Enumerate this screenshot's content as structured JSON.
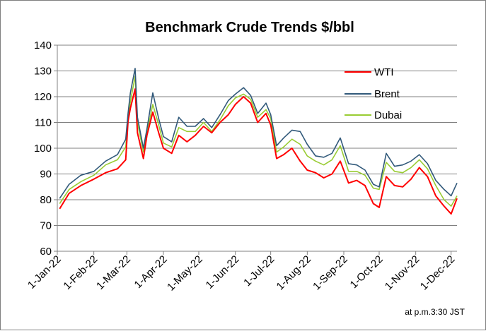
{
  "chart_data": {
    "type": "line",
    "title": "Benchmark Crude Trends $/bbl",
    "xlabel": "",
    "ylabel": "",
    "ylim": [
      60,
      140
    ],
    "yticks": [
      60,
      70,
      80,
      90,
      100,
      110,
      120,
      130,
      140
    ],
    "xlim": [
      "1-Jan-22",
      "6-Dec-22"
    ],
    "xticks": [
      "1-Jan-22",
      "1-Feb-22",
      "1-Mar-22",
      "1-Apr-22",
      "1-May-22",
      "1-Jun-22",
      "1-Jul-22",
      "1-Aug-22",
      "1-Sep-22",
      "1-Oct-22",
      "1-Nov-22",
      "1-Dec-22"
    ],
    "grid": "horizontal",
    "legend": "top-right",
    "x": [
      "3-Jan-22",
      "11-Jan-22",
      "21-Jan-22",
      "1-Feb-22",
      "11-Feb-22",
      "21-Feb-22",
      "28-Feb-22",
      "2-Mar-22",
      "4-Mar-22",
      "8-Mar-22",
      "10-Mar-22",
      "15-Mar-22",
      "18-Mar-22",
      "23-Mar-22",
      "28-Mar-22",
      "1-Apr-22",
      "8-Apr-22",
      "14-Apr-22",
      "21-Apr-22",
      "28-Apr-22",
      "5-May-22",
      "12-May-22",
      "19-May-22",
      "26-May-22",
      "1-Jun-22",
      "8-Jun-22",
      "14-Jun-22",
      "20-Jun-22",
      "27-Jun-22",
      "1-Jul-22",
      "6-Jul-22",
      "12-Jul-22",
      "19-Jul-22",
      "26-Jul-22",
      "1-Aug-22",
      "8-Aug-22",
      "15-Aug-22",
      "22-Aug-22",
      "29-Aug-22",
      "5-Sep-22",
      "12-Sep-22",
      "19-Sep-22",
      "26-Sep-22",
      "1-Oct-22",
      "7-Oct-22",
      "14-Oct-22",
      "21-Oct-22",
      "28-Oct-22",
      "4-Nov-22",
      "11-Nov-22",
      "18-Nov-22",
      "25-Nov-22",
      "1-Dec-22",
      "6-Dec-22"
    ],
    "series": [
      {
        "name": "WTI",
        "color": "#ff0000",
        "values": [
          76.5,
          82.5,
          85.5,
          88.0,
          90.5,
          92.0,
          95.5,
          110.5,
          115.5,
          123.0,
          106.0,
          96.0,
          105.0,
          114.0,
          106.0,
          100.0,
          98.0,
          105.0,
          102.5,
          105.0,
          108.5,
          106.0,
          110.0,
          113.0,
          117.0,
          120.0,
          117.5,
          110.0,
          113.5,
          109.0,
          96.0,
          97.5,
          100.0,
          95.0,
          91.5,
          90.5,
          88.5,
          90.0,
          95.0,
          86.5,
          87.5,
          85.5,
          78.5,
          77.0,
          89.0,
          85.5,
          85.0,
          88.0,
          92.5,
          89.0,
          81.5,
          77.5,
          74.5,
          80.5
        ]
      },
      {
        "name": "Brent",
        "color": "#31597a",
        "values": [
          80.5,
          86.0,
          89.5,
          91.0,
          95.0,
          97.5,
          103.5,
          113.5,
          121.5,
          131.0,
          112.0,
          100.0,
          107.5,
          121.5,
          111.5,
          104.5,
          102.5,
          112.0,
          108.5,
          108.5,
          111.5,
          108.0,
          113.0,
          118.5,
          121.0,
          123.5,
          120.5,
          113.5,
          117.5,
          113.0,
          101.0,
          104.0,
          107.0,
          106.5,
          101.5,
          97.0,
          96.5,
          98.0,
          104.0,
          94.0,
          93.5,
          91.5,
          86.0,
          85.0,
          98.0,
          93.0,
          93.5,
          95.0,
          97.5,
          94.0,
          87.5,
          84.0,
          81.5,
          86.5
        ]
      },
      {
        "name": "Dubai",
        "color": "#99cc33",
        "values": [
          78.5,
          84.0,
          87.0,
          89.5,
          93.5,
          95.5,
          100.5,
          111.5,
          118.0,
          128.0,
          110.0,
          98.5,
          106.0,
          117.0,
          109.0,
          102.0,
          100.5,
          108.0,
          106.5,
          106.5,
          110.0,
          106.5,
          111.0,
          116.5,
          119.5,
          121.0,
          119.0,
          112.0,
          115.0,
          111.5,
          98.5,
          100.5,
          103.5,
          101.5,
          97.0,
          95.0,
          93.5,
          95.5,
          101.0,
          91.0,
          91.0,
          89.5,
          84.5,
          84.0,
          94.5,
          91.0,
          90.5,
          92.5,
          95.5,
          92.0,
          85.5,
          80.0,
          77.5,
          81.5
        ]
      }
    ],
    "note": "at p.m.3:30 JST"
  }
}
